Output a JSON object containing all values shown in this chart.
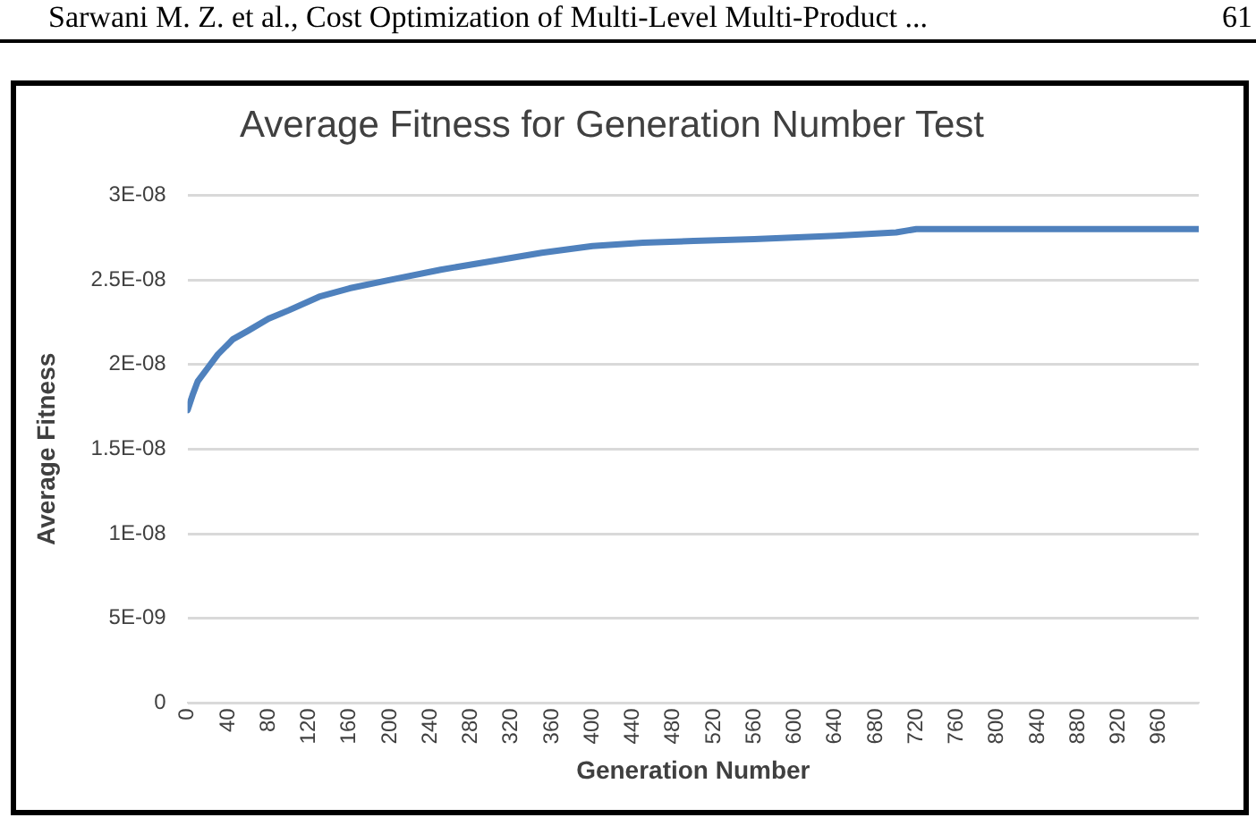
{
  "chart_data": {
    "type": "line",
    "title": "Average Fitness for Generation Number Test",
    "xlabel": "Generation Number",
    "ylabel": "Average Fitness",
    "annotations": [
      "Sarwani M. Z. et al., Cost Optimization of Multi-Level Multi-Product ...",
      "61"
    ],
    "x": [
      0,
      5,
      10,
      20,
      30,
      45,
      60,
      80,
      100,
      130,
      160,
      200,
      250,
      300,
      350,
      400,
      450,
      500,
      560,
      640,
      700,
      720,
      999
    ],
    "series": [
      {
        "color": "#4f81bd",
        "values": [
          1.73e-08,
          1.82e-08,
          1.9e-08,
          1.98e-08,
          2.06e-08,
          2.15e-08,
          2.2e-08,
          2.27e-08,
          2.32e-08,
          2.4e-08,
          2.45e-08,
          2.5e-08,
          2.56e-08,
          2.61e-08,
          2.66e-08,
          2.7e-08,
          2.72e-08,
          2.73e-08,
          2.74e-08,
          2.76e-08,
          2.78e-08,
          2.8e-08,
          2.8e-08
        ]
      }
    ],
    "xlim": [
      0,
      999
    ],
    "xticks": [
      0,
      40,
      80,
      120,
      160,
      200,
      240,
      280,
      320,
      360,
      400,
      440,
      480,
      520,
      560,
      600,
      640,
      680,
      720,
      760,
      800,
      840,
      880,
      920,
      960
    ],
    "ylim": [
      0,
      3e-08
    ],
    "yticks": [
      {
        "value": 0,
        "label": "0"
      },
      {
        "value": 5e-09,
        "label": "5E-09"
      },
      {
        "value": 1e-08,
        "label": "1E-08"
      },
      {
        "value": 1.5e-08,
        "label": "1.5E-08"
      },
      {
        "value": 2e-08,
        "label": "2E-08"
      },
      {
        "value": 2.5e-08,
        "label": "2.5E-08"
      },
      {
        "value": 3e-08,
        "label": "3E-08"
      }
    ],
    "grid": "y",
    "legend": false,
    "marker": "none",
    "line_style": "solid"
  }
}
